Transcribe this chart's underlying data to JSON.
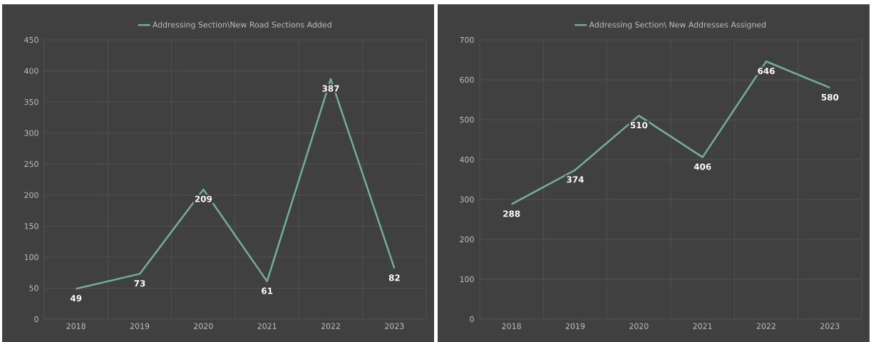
{
  "chart_data": [
    {
      "type": "line",
      "categories": [
        "2018",
        "2019",
        "2020",
        "2021",
        "2022",
        "2023"
      ],
      "series": [
        {
          "name": "Addressing Section\\New Road Sections Added",
          "color": "#76ac9a",
          "values": [
            49,
            73,
            209,
            61,
            387,
            82
          ]
        }
      ],
      "ylim": [
        0,
        450
      ],
      "yticks": [
        0,
        50,
        100,
        150,
        200,
        250,
        300,
        350,
        400,
        450
      ],
      "grid": true,
      "legend": "top",
      "data_labels": true,
      "marker": "none"
    },
    {
      "type": "line",
      "categories": [
        "2018",
        "2019",
        "2020",
        "2021",
        "2022",
        "2023"
      ],
      "series": [
        {
          "name": "Addressing Section\\ New Addresses Assigned",
          "color": "#76ac9a",
          "values": [
            288,
            374,
            510,
            406,
            646,
            580
          ]
        }
      ],
      "ylim": [
        0,
        700
      ],
      "yticks": [
        0,
        100,
        200,
        300,
        400,
        500,
        600,
        700
      ],
      "grid": true,
      "legend": "top",
      "data_labels": true,
      "marker": "none"
    }
  ]
}
